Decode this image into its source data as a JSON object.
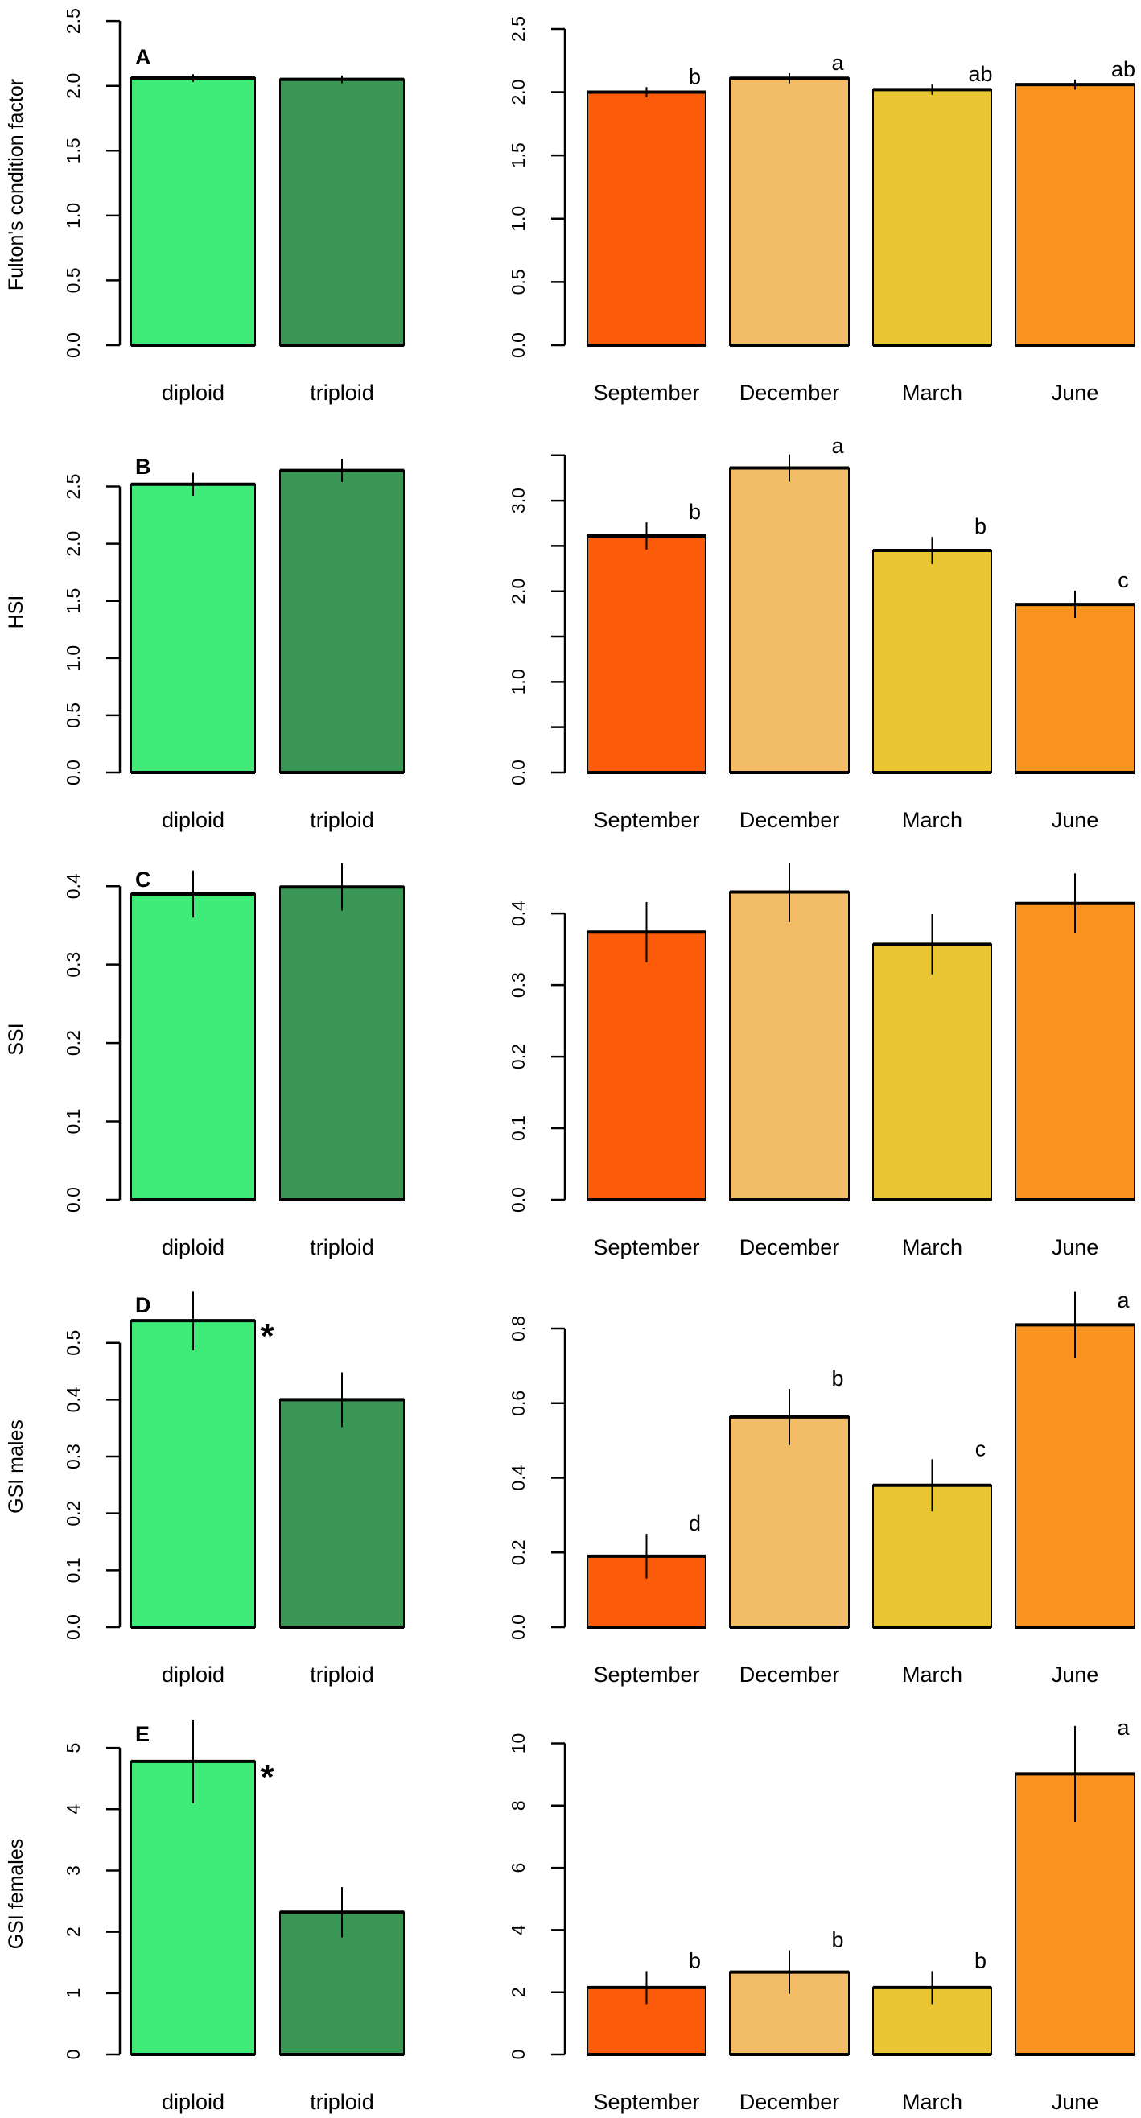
{
  "colors": {
    "diploid": "#3EEB78",
    "triploid": "#3A9655",
    "September": "#FC5B0A",
    "December": "#F3BC67",
    "March": "#EBC634",
    "June": "#FA941E"
  },
  "chart_data": [
    {
      "type": "bar",
      "row": 0,
      "side": "left",
      "panel_label": "A",
      "ylabel": "Fulton's condition factor",
      "categories": [
        "diploid",
        "triploid"
      ],
      "values": [
        2.06,
        2.05
      ],
      "errors": [
        0.03,
        0.03
      ],
      "significance": [
        "",
        ""
      ],
      "asterisk": "",
      "ylim": [
        0,
        2.6
      ],
      "ticks": [
        0,
        0.5,
        1,
        1.5,
        2,
        2.5
      ],
      "tick_labels": [
        "0.0",
        "0.5",
        "1.0",
        "1.5",
        "2.0",
        "2.5"
      ]
    },
    {
      "type": "bar",
      "row": 0,
      "side": "right",
      "panel_label": "",
      "ylabel": "",
      "categories": [
        "September",
        "December",
        "March",
        "June"
      ],
      "values": [
        2.0,
        2.11,
        2.02,
        2.06
      ],
      "errors": [
        0.04,
        0.04,
        0.04,
        0.04
      ],
      "significance": [
        "b",
        "a",
        "ab",
        "ab"
      ],
      "asterisk": "",
      "ylim": [
        0,
        2.665
      ],
      "ticks": [
        0,
        0.5,
        1,
        1.5,
        2,
        2.5
      ],
      "tick_labels": [
        "0.0",
        "0.5",
        "1.0",
        "1.5",
        "2.0",
        "2.5"
      ]
    },
    {
      "type": "bar",
      "row": 1,
      "side": "left",
      "panel_label": "B",
      "ylabel": "HSI",
      "categories": [
        "diploid",
        "triploid"
      ],
      "values": [
        2.52,
        2.64
      ],
      "errors": [
        0.1,
        0.1
      ],
      "significance": [
        "",
        ""
      ],
      "asterisk": "",
      "ylim": [
        0,
        2.947
      ],
      "ticks": [
        0,
        0.5,
        1,
        1.5,
        2,
        2.5
      ],
      "tick_labels": [
        "0.0",
        "0.5",
        "1.0",
        "1.5",
        "2.0",
        "2.5"
      ]
    },
    {
      "type": "bar",
      "row": 1,
      "side": "right",
      "panel_label": "",
      "ylabel": "",
      "categories": [
        "September",
        "December",
        "March",
        "June"
      ],
      "values": [
        2.61,
        3.36,
        2.45,
        1.855
      ],
      "errors": [
        0.15,
        0.15,
        0.15,
        0.15
      ],
      "significance": [
        "b",
        "a",
        "b",
        "c"
      ],
      "asterisk": "",
      "ylim": [
        0,
        3.72
      ],
      "ticks": [
        0,
        0.5,
        1,
        1.5,
        2,
        2.5,
        3,
        3.5
      ],
      "tick_labels": [
        "0.0",
        "",
        "1.0",
        "",
        "2.0",
        "",
        "3.0",
        ""
      ]
    },
    {
      "type": "bar",
      "row": 2,
      "side": "left",
      "panel_label": "C",
      "ylabel": "SSI",
      "categories": [
        "diploid",
        "triploid"
      ],
      "values": [
        0.39,
        0.399
      ],
      "errors": [
        0.03,
        0.03
      ],
      "significance": [
        "",
        ""
      ],
      "asterisk": "",
      "ylim": [
        0,
        0.43
      ],
      "ticks": [
        0,
        0.1,
        0.2,
        0.3,
        0.4
      ],
      "tick_labels": [
        "0.0",
        "0.1",
        "0.2",
        "0.3",
        "0.4"
      ]
    },
    {
      "type": "bar",
      "row": 2,
      "side": "right",
      "panel_label": "",
      "ylabel": "",
      "categories": [
        "September",
        "December",
        "March",
        "June"
      ],
      "values": [
        0.374,
        0.43,
        0.357,
        0.414
      ],
      "errors": [
        0.042,
        0.042,
        0.042,
        0.042
      ],
      "significance": [
        "",
        "",
        "",
        ""
      ],
      "asterisk": "",
      "ylim": [
        0,
        0.471
      ],
      "ticks": [
        0,
        0.1,
        0.2,
        0.3,
        0.4
      ],
      "tick_labels": [
        "0.0",
        "0.1",
        "0.2",
        "0.3",
        "0.4"
      ]
    },
    {
      "type": "bar",
      "row": 3,
      "side": "left",
      "panel_label": "D",
      "ylabel": "GSI males",
      "categories": [
        "diploid",
        "triploid"
      ],
      "values": [
        0.539,
        0.4
      ],
      "errors": [
        0.052,
        0.048
      ],
      "significance": [
        "",
        ""
      ],
      "asterisk": "*",
      "ylim": [
        0,
        0.593
      ],
      "ticks": [
        0,
        0.1,
        0.2,
        0.3,
        0.4,
        0.5
      ],
      "tick_labels": [
        "0.0",
        "0.1",
        "0.2",
        "0.3",
        "0.4",
        "0.5"
      ]
    },
    {
      "type": "bar",
      "row": 3,
      "side": "right",
      "panel_label": "",
      "ylabel": "",
      "categories": [
        "September",
        "December",
        "March",
        "June"
      ],
      "values": [
        0.19,
        0.563,
        0.38,
        0.81
      ],
      "errors": [
        0.06,
        0.075,
        0.07,
        0.09
      ],
      "significance": [
        "d",
        "b",
        "c",
        "a"
      ],
      "asterisk": "",
      "ylim": [
        0,
        0.9035
      ],
      "ticks": [
        0,
        0.2,
        0.4,
        0.6,
        0.8
      ],
      "tick_labels": [
        "0.0",
        "0.2",
        "0.4",
        "0.6",
        "0.8"
      ]
    },
    {
      "type": "bar",
      "row": 4,
      "side": "left",
      "panel_label": "E",
      "ylabel": "GSI females",
      "categories": [
        "diploid",
        "triploid"
      ],
      "values": [
        4.78,
        2.32
      ],
      "errors": [
        0.68,
        0.41
      ],
      "significance": [
        "",
        ""
      ],
      "asterisk": "*",
      "ylim": [
        0,
        5.5
      ],
      "ticks": [
        0,
        1,
        2,
        3,
        4,
        5
      ],
      "tick_labels": [
        "0",
        "1",
        "2",
        "3",
        "4",
        "5"
      ]
    },
    {
      "type": "bar",
      "row": 4,
      "side": "right",
      "panel_label": "",
      "ylabel": "",
      "categories": [
        "September",
        "December",
        "March",
        "June"
      ],
      "values": [
        2.15,
        2.65,
        2.15,
        9.02
      ],
      "errors": [
        0.53,
        0.7,
        0.53,
        1.54
      ],
      "significance": [
        "b",
        "b",
        "b",
        "a"
      ],
      "asterisk": "",
      "ylim": [
        0,
        10.84
      ],
      "ticks": [
        0,
        2,
        4,
        6,
        8,
        10
      ],
      "tick_labels": [
        "0",
        "2",
        "4",
        "6",
        "8",
        "10"
      ]
    }
  ]
}
